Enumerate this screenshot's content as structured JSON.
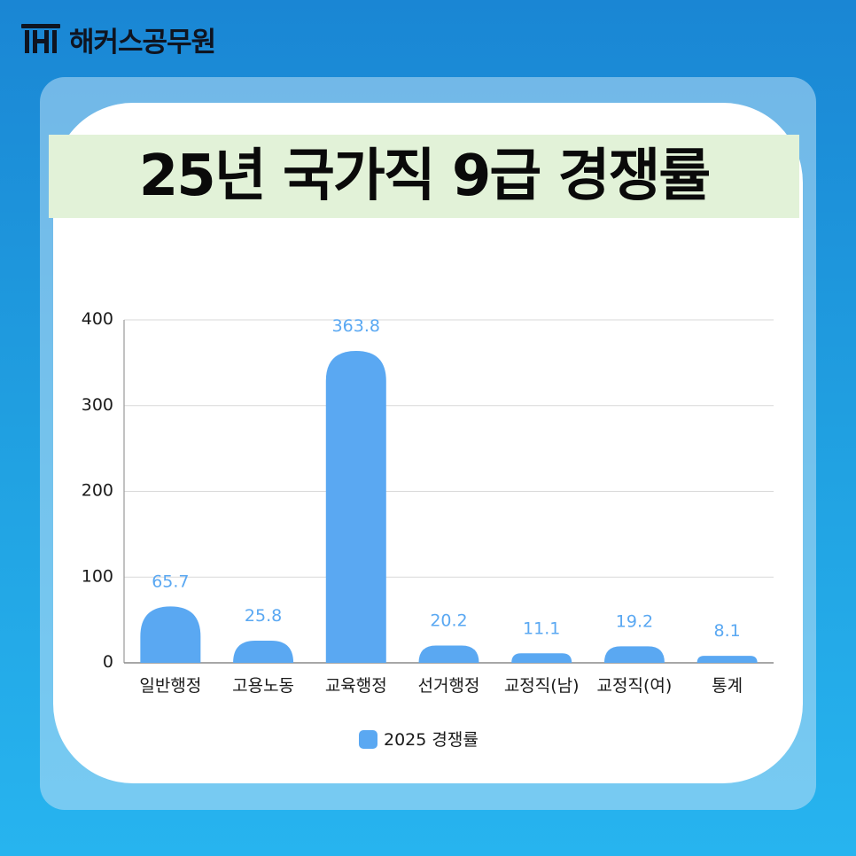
{
  "brand": {
    "name": "해커스공무원"
  },
  "colors": {
    "bar": "#5aa8f2",
    "title_band": "#e2f2d8",
    "background": "#1f96dc"
  },
  "chart_data": {
    "type": "bar",
    "title": "25년 국가직 9급 경쟁률",
    "categories": [
      "일반행정",
      "고용노동",
      "교육행정",
      "선거행정",
      "교정직(남)",
      "교정직(여)",
      "통계"
    ],
    "series": [
      {
        "name": "2025 경쟁률",
        "values": [
          65.7,
          25.8,
          363.8,
          20.2,
          11.1,
          19.2,
          8.1
        ]
      }
    ],
    "value_labels": [
      "65.7",
      "25.8",
      "363.8",
      "20.2",
      "11.1",
      "19.2",
      "8.1"
    ],
    "ylim": [
      0,
      400
    ],
    "yticks": [
      0,
      100,
      200,
      300,
      400
    ],
    "grid": true,
    "legend": "bottom-center"
  }
}
